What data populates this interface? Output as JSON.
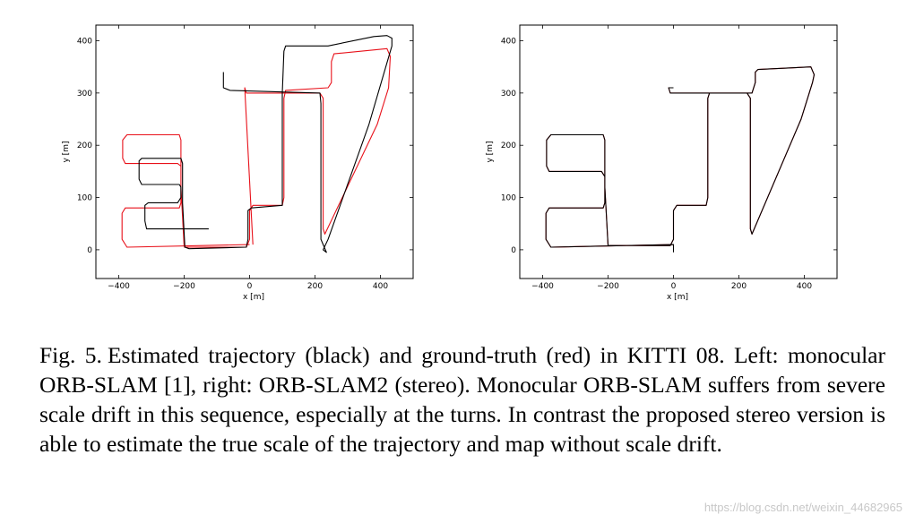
{
  "chart_data": [
    {
      "type": "line",
      "xlabel": "x [m]",
      "ylabel": "y [m]",
      "xlim": [
        -470,
        500
      ],
      "ylim": [
        -55,
        430
      ],
      "xticks": [
        -400,
        -200,
        0,
        200,
        400
      ],
      "xtick_labels": [
        "−400",
        "−200",
        "0",
        "200",
        "400"
      ],
      "yticks": [
        0,
        100,
        200,
        300,
        400
      ],
      "ytick_labels": [
        "0",
        "100",
        "200",
        "300",
        "400"
      ],
      "grid": false,
      "series": [
        {
          "color": "#e8111a",
          "points": [
            [
              0,
              10
            ],
            [
              -375,
              5
            ],
            [
              -390,
              20
            ],
            [
              -390,
              70
            ],
            [
              -380,
              80
            ],
            [
              -215,
              80
            ],
            [
              -210,
              90
            ],
            [
              -210,
              160
            ],
            [
              -220,
              165
            ],
            [
              -380,
              165
            ],
            [
              -388,
              175
            ],
            [
              -388,
              210
            ],
            [
              -375,
              220
            ],
            [
              -215,
              220
            ],
            [
              -210,
              210
            ],
            [
              -210,
              120
            ],
            [
              -200,
              5
            ],
            [
              -10,
              5
            ],
            [
              0,
              20
            ],
            [
              0,
              75
            ],
            [
              10,
              85
            ],
            [
              100,
              85
            ],
            [
              105,
              100
            ],
            [
              105,
              290
            ],
            [
              110,
              305
            ],
            [
              240,
              310
            ],
            [
              250,
              320
            ],
            [
              250,
              360
            ],
            [
              258,
              375
            ],
            [
              420,
              385
            ],
            [
              430,
              370
            ],
            [
              425,
              310
            ],
            [
              390,
              240
            ],
            [
              230,
              30
            ],
            [
              225,
              40
            ],
            [
              225,
              290
            ],
            [
              215,
              300
            ],
            [
              -10,
              300
            ],
            [
              -15,
              310
            ],
            [
              10,
              10
            ]
          ]
        },
        {
          "color": "#000000",
          "points": [
            [
              -125,
              40
            ],
            [
              -315,
              40
            ],
            [
              -320,
              55
            ],
            [
              -320,
              85
            ],
            [
              -310,
              90
            ],
            [
              -220,
              90
            ],
            [
              -210,
              100
            ],
            [
              -210,
              120
            ],
            [
              -215,
              125
            ],
            [
              -330,
              125
            ],
            [
              -338,
              135
            ],
            [
              -338,
              170
            ],
            [
              -330,
              175
            ],
            [
              -210,
              175
            ],
            [
              -205,
              165
            ],
            [
              -205,
              90
            ],
            [
              -198,
              5
            ],
            [
              -185,
              2
            ],
            [
              -10,
              5
            ],
            [
              -5,
              20
            ],
            [
              -5,
              75
            ],
            [
              5,
              80
            ],
            [
              100,
              85
            ],
            [
              100,
              300
            ],
            [
              105,
              380
            ],
            [
              110,
              390
            ],
            [
              240,
              390
            ],
            [
              380,
              408
            ],
            [
              420,
              410
            ],
            [
              435,
              405
            ],
            [
              435,
              390
            ],
            [
              365,
              240
            ],
            [
              240,
              20
            ],
            [
              225,
              0
            ],
            [
              235,
              -5
            ],
            [
              225,
              10
            ],
            [
              218,
              20
            ],
            [
              218,
              280
            ],
            [
              215,
              300
            ],
            [
              -60,
              305
            ],
            [
              -80,
              310
            ],
            [
              -80,
              340
            ]
          ]
        }
      ]
    },
    {
      "type": "line",
      "xlabel": "x [m]",
      "ylabel": "y [m]",
      "xlim": [
        -470,
        500
      ],
      "ylim": [
        -55,
        430
      ],
      "xticks": [
        -400,
        -200,
        0,
        200,
        400
      ],
      "xtick_labels": [
        "−400",
        "−200",
        "0",
        "200",
        "400"
      ],
      "yticks": [
        0,
        100,
        200,
        300,
        400
      ],
      "ytick_labels": [
        "0",
        "100",
        "200",
        "300",
        "400"
      ],
      "grid": false,
      "series": [
        {
          "color": "#e8111a",
          "points": [
            [
              0,
              10
            ],
            [
              -375,
              5
            ],
            [
              -390,
              20
            ],
            [
              -390,
              70
            ],
            [
              -380,
              80
            ],
            [
              -215,
              80
            ],
            [
              -210,
              90
            ],
            [
              -210,
              140
            ],
            [
              -220,
              150
            ],
            [
              -380,
              150
            ],
            [
              -388,
              160
            ],
            [
              -388,
              210
            ],
            [
              -375,
              220
            ],
            [
              -215,
              220
            ],
            [
              -210,
              210
            ],
            [
              -210,
              120
            ],
            [
              -200,
              8
            ],
            [
              -10,
              8
            ],
            [
              0,
              20
            ],
            [
              0,
              75
            ],
            [
              10,
              85
            ],
            [
              100,
              85
            ],
            [
              105,
              100
            ],
            [
              105,
              290
            ],
            [
              110,
              300
            ],
            [
              240,
              300
            ],
            [
              250,
              320
            ],
            [
              250,
              340
            ],
            [
              258,
              345
            ],
            [
              420,
              350
            ],
            [
              430,
              335
            ],
            [
              425,
              320
            ],
            [
              390,
              250
            ],
            [
              240,
              30
            ],
            [
              235,
              40
            ],
            [
              235,
              290
            ],
            [
              225,
              300
            ],
            [
              -10,
              300
            ],
            [
              -15,
              310
            ],
            [
              0,
              310
            ]
          ]
        },
        {
          "color": "#000000",
          "points": [
            [
              0,
              -5
            ],
            [
              0,
              10
            ],
            [
              -375,
              5
            ],
            [
              -390,
              20
            ],
            [
              -390,
              70
            ],
            [
              -380,
              80
            ],
            [
              -215,
              80
            ],
            [
              -210,
              90
            ],
            [
              -210,
              140
            ],
            [
              -220,
              150
            ],
            [
              -380,
              150
            ],
            [
              -388,
              160
            ],
            [
              -388,
              210
            ],
            [
              -375,
              220
            ],
            [
              -215,
              220
            ],
            [
              -210,
              210
            ],
            [
              -210,
              120
            ],
            [
              -200,
              8
            ],
            [
              -10,
              8
            ],
            [
              0,
              20
            ],
            [
              0,
              75
            ],
            [
              10,
              85
            ],
            [
              100,
              85
            ],
            [
              105,
              100
            ],
            [
              105,
              290
            ],
            [
              110,
              300
            ],
            [
              240,
              300
            ],
            [
              250,
              320
            ],
            [
              250,
              340
            ],
            [
              258,
              345
            ],
            [
              420,
              350
            ],
            [
              430,
              335
            ],
            [
              425,
              320
            ],
            [
              390,
              250
            ],
            [
              240,
              30
            ],
            [
              235,
              40
            ],
            [
              235,
              290
            ],
            [
              225,
              300
            ],
            [
              -10,
              300
            ],
            [
              -15,
              310
            ],
            [
              0,
              310
            ]
          ]
        }
      ]
    }
  ],
  "caption": {
    "fig_label": "Fig. 5.",
    "text": "Estimated trajectory (black) and ground-truth (red) in KITTI 08. Left: monocular ORB-SLAM [1], right: ORB-SLAM2 (stereo). Monocular ORB-SLAM suffers from severe scale drift in this sequence, especially at the turns. In contrast the proposed stereo version is able to estimate the true scale of the trajectory and map without scale drift."
  },
  "watermark": "https://blog.csdn.net/weixin_44682965"
}
